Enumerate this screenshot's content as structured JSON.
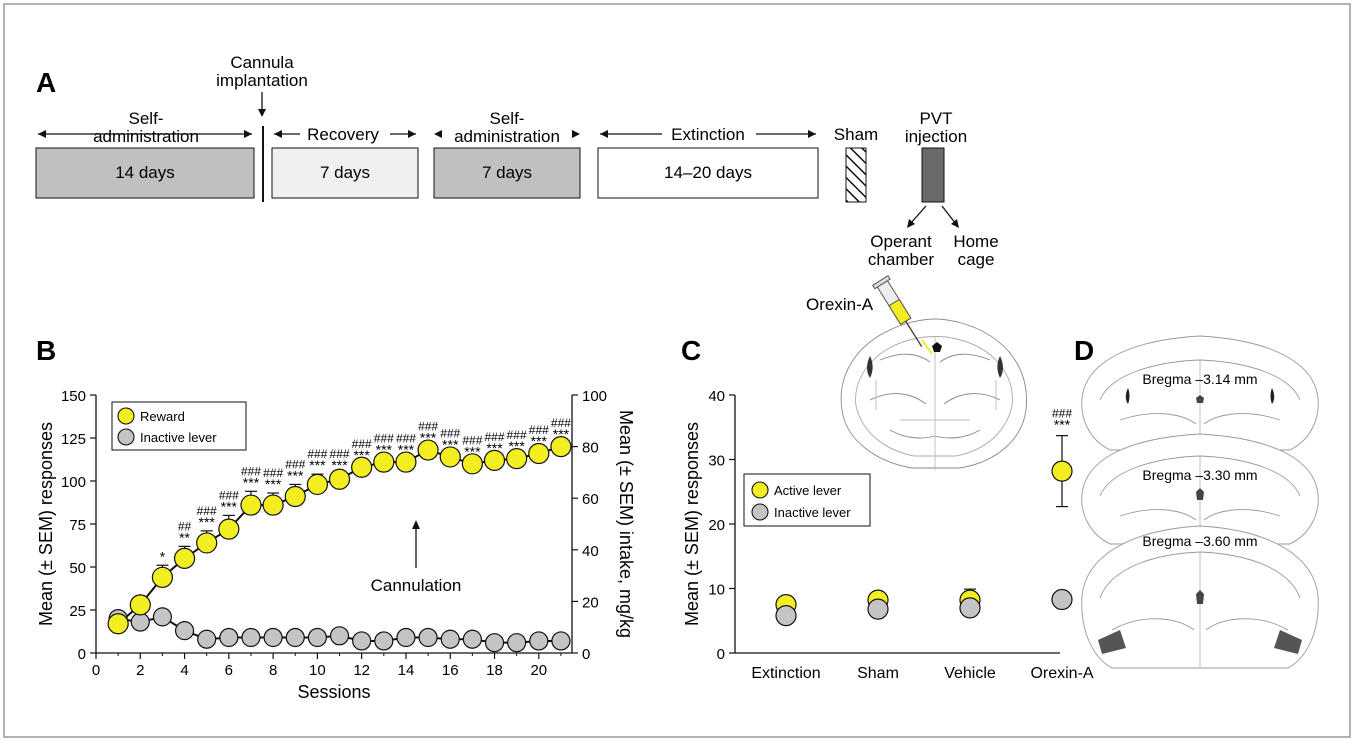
{
  "panel_a": {
    "letter": "A",
    "phases": [
      {
        "label": "Self-\nadministration",
        "box_text": "14 days"
      },
      {
        "label": "Recovery",
        "box_text": "7 days"
      },
      {
        "label": "Self-\nadministration",
        "box_text": "7 days"
      },
      {
        "label": "Extinction",
        "box_text": "14–20 days"
      }
    ],
    "cannula_label": "Cannula\nimplantation",
    "sham_label": "Sham",
    "pvt_label": "PVT\ninjection",
    "operant_label": "Operant\nchamber",
    "homecage_label": "Home\ncage",
    "colors": {
      "dark_gray": "#c0c0c0",
      "light_gray": "#f0f0f0",
      "pvt_box": "#6a6a6a"
    }
  },
  "panel_b": {
    "letter": "B",
    "annotation": "Cannulation"
  },
  "panel_c": {
    "letter": "C",
    "orexin_label": "Orexin-A"
  },
  "panel_d": {
    "letter": "D",
    "sections": [
      "Bregma –3.14 mm",
      "Bregma –3.30 mm",
      "Bregma –3.60 mm"
    ]
  },
  "chart_data": [
    {
      "type": "line",
      "panel": "B",
      "xlabel": "Sessions",
      "ylabel": "Mean (± SEM) responses",
      "y2label": "Mean (± SEM) intake, mg/kg",
      "xlim": [
        0,
        21.5
      ],
      "ylim": [
        0,
        150
      ],
      "y2lim": [
        0,
        100
      ],
      "xticks": [
        0,
        2,
        4,
        6,
        8,
        10,
        12,
        14,
        16,
        18,
        20
      ],
      "yticks": [
        0,
        25,
        50,
        75,
        100,
        125,
        150
      ],
      "y2ticks": [
        0,
        20,
        40,
        60,
        80,
        100
      ],
      "legend_position": "top-left",
      "x": [
        1,
        2,
        3,
        4,
        5,
        6,
        7,
        8,
        9,
        10,
        11,
        12,
        13,
        14,
        15,
        16,
        17,
        18,
        19,
        20,
        21
      ],
      "series": [
        {
          "name": "Reward",
          "color": "#f2ee22",
          "values": [
            17,
            28,
            44,
            55,
            64,
            72,
            86,
            86,
            91,
            98,
            101,
            108,
            111,
            111,
            118,
            114,
            110,
            112,
            113,
            116,
            120
          ],
          "sem": [
            2,
            3,
            7,
            7,
            7,
            8,
            8,
            7,
            7,
            6,
            3,
            2,
            2,
            2,
            2,
            2,
            2,
            2,
            2,
            2,
            2
          ],
          "stars": [
            "",
            "",
            "*",
            "**",
            "***",
            "***",
            "***",
            "***",
            "***",
            "***",
            "***",
            "***",
            "***",
            "***",
            "***",
            "***",
            "***",
            "***",
            "***",
            "***",
            "***"
          ],
          "hashes": [
            "",
            "",
            "",
            "##",
            "###",
            "###",
            "###",
            "###",
            "###",
            "###",
            "###",
            "###",
            "###",
            "###",
            "###",
            "###",
            "###",
            "###",
            "###",
            "###",
            "###"
          ]
        },
        {
          "name": "Inactive lever",
          "color": "#c4c4c4",
          "values": [
            20,
            18,
            21,
            13,
            8,
            9,
            9,
            9,
            9,
            9,
            10,
            7,
            7,
            9,
            9,
            8,
            8,
            6,
            6,
            7,
            7
          ]
        }
      ]
    },
    {
      "type": "scatter",
      "panel": "C",
      "categories": [
        "Extinction",
        "Sham",
        "Vehicle",
        "Orexin-A"
      ],
      "ylabel": "Mean (± SEM) responses",
      "ylim": [
        0,
        40
      ],
      "yticks": [
        0,
        10,
        20,
        30,
        40
      ],
      "legend_position": "center-left",
      "series": [
        {
          "name": "Active lever",
          "color": "#f2ee22",
          "values": [
            7.5,
            8.2,
            8.2,
            28.2
          ],
          "sem": [
            0.5,
            0.5,
            1.7,
            5.5
          ]
        },
        {
          "name": "Inactive lever",
          "color": "#c4c4c4",
          "values": [
            5.8,
            6.8,
            7.0,
            8.3
          ]
        }
      ],
      "annotations": [
        {
          "category": "Orexin-A",
          "stars": "***",
          "hashes": "###"
        }
      ]
    }
  ]
}
